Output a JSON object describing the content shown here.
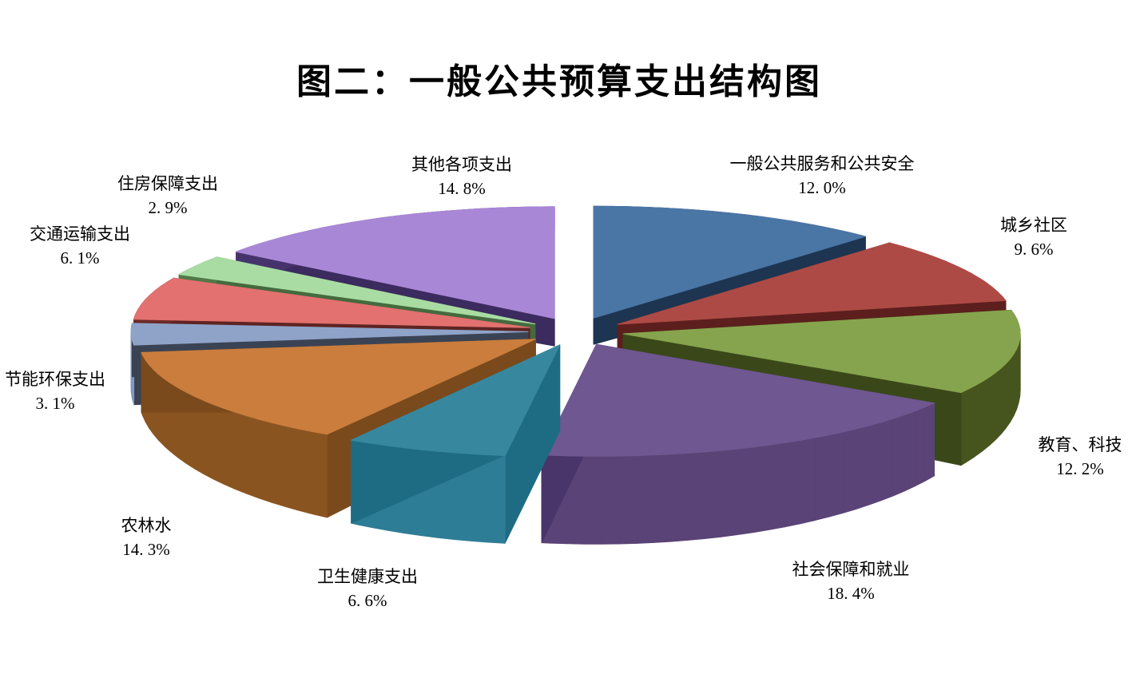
{
  "title": "图二：一般公共预算支出结构图",
  "background_color": "#FFFFFF",
  "chart_data": {
    "type": "pie",
    "style": "3d-exploded",
    "title": "图二：一般公共预算支出结构图",
    "start_angle_deg": -90,
    "direction": "clockwise",
    "legend_position": "none",
    "labels_position": "outside",
    "slices": [
      {
        "label": "一般公共服务和公共安全",
        "value": 12.0,
        "pct_label": "12. 0%",
        "color": "#4A76A6",
        "side": "#24405F",
        "edge": "#1D3550"
      },
      {
        "label": "城乡社区",
        "value": 9.6,
        "pct_label": "9. 6%",
        "color": "#AE4A45",
        "side": "#6E2522",
        "edge": "#5C1F1D"
      },
      {
        "label": "教育、科技",
        "value": 12.2,
        "pct_label": "12. 2%",
        "color": "#86A44D",
        "side": "#46551E",
        "edge": "#3A4819"
      },
      {
        "label": "社会保障和就业",
        "value": 18.4,
        "pct_label": "18. 4%",
        "color": "#6F5791",
        "side": "#5A4376",
        "edge": "#49356A"
      },
      {
        "label": "卫生健康支出",
        "value": 6.6,
        "pct_label": "6. 6%",
        "color": "#37889F",
        "side": "#2E7D96",
        "edge": "#1E6C84"
      },
      {
        "label": "农林水",
        "value": 14.3,
        "pct_label": "14. 3%",
        "color": "#CA7D3D",
        "side": "#8A5420",
        "edge": "#7A4A1C"
      },
      {
        "label": "节能环保支出",
        "value": 3.1,
        "pct_label": "3. 1%",
        "color": "#8FA3C9",
        "side": "#8296BF",
        "edge": "#3A4354"
      },
      {
        "label": "交通运输支出",
        "value": 6.1,
        "pct_label": "6. 1%",
        "color": "#E27170",
        "side": "#6E2B28",
        "edge": "#5E2422"
      },
      {
        "label": "住房保障支出",
        "value": 2.9,
        "pct_label": "2. 9%",
        "color": "#A8DCA3",
        "side": "#4F7A48",
        "edge": "#446A3E"
      },
      {
        "label": "其他各项支出",
        "value": 14.8,
        "pct_label": "14. 8%",
        "color": "#A987D7",
        "side": "#46336C",
        "edge": "#3C2B5E"
      }
    ]
  }
}
